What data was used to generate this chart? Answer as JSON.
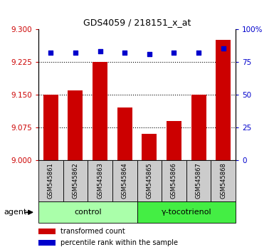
{
  "title": "GDS4059 / 218151_x_at",
  "samples": [
    "GSM545861",
    "GSM545862",
    "GSM545863",
    "GSM545864",
    "GSM545865",
    "GSM545866",
    "GSM545867",
    "GSM545868"
  ],
  "transformed_counts": [
    9.15,
    9.16,
    9.225,
    9.12,
    9.06,
    9.09,
    9.15,
    9.275
  ],
  "percentile_ranks": [
    82,
    82,
    83,
    82,
    81,
    82,
    82,
    85
  ],
  "ylim_left": [
    9.0,
    9.3
  ],
  "ylim_right": [
    0,
    100
  ],
  "yticks_left": [
    9.0,
    9.075,
    9.15,
    9.225,
    9.3
  ],
  "yticks_right": [
    0,
    25,
    50,
    75,
    100
  ],
  "groups": [
    {
      "label": "control",
      "indices": [
        0,
        1,
        2,
        3
      ],
      "color": "#aaffaa"
    },
    {
      "label": "γ-tocotrienol",
      "indices": [
        4,
        5,
        6,
        7
      ],
      "color": "#44ee44"
    }
  ],
  "bar_color": "#cc0000",
  "dot_color": "#0000cc",
  "bar_width": 0.6,
  "grid_linestyle": ":",
  "grid_linewidth": 0.8,
  "agent_label": "agent",
  "legend_items": [
    {
      "label": "transformed count",
      "color": "#cc0000"
    },
    {
      "label": "percentile rank within the sample",
      "color": "#0000cc"
    }
  ],
  "tick_color_left": "#cc0000",
  "tick_color_right": "#0000cc",
  "background_color": "#ffffff",
  "sample_area_color": "#cccccc",
  "title_fontsize": 9,
  "axis_fontsize": 7.5,
  "sample_fontsize": 6,
  "group_fontsize": 8,
  "legend_fontsize": 7,
  "agent_fontsize": 8
}
